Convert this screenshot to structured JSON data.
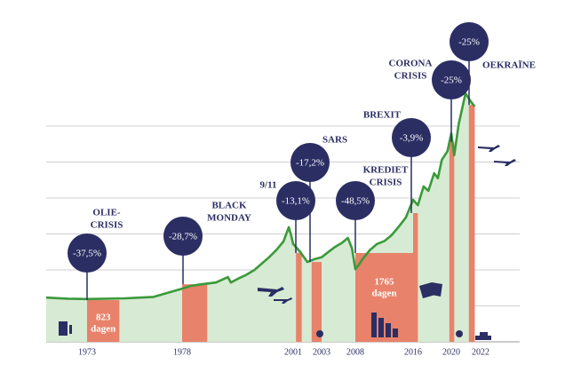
{
  "chart_data": {
    "type": "line",
    "x": [
      1970.85,
      1972,
      1973,
      1974,
      1975,
      1976.5,
      1978,
      1979,
      1980,
      1982,
      1985,
      1987.5,
      1988.1,
      1989.5,
      1991.1,
      1993,
      1996,
      1997.5,
      1999,
      2000.1,
      2000.6,
      2001,
      2001.5,
      2002,
      2002.5,
      2003,
      2004,
      2005,
      2006,
      2006.9,
      2007.5,
      2008,
      2008.5,
      2009,
      2010,
      2011,
      2012,
      2013,
      2014,
      2015,
      2016,
      2016.5,
      2017.1,
      2017.6,
      2018.2,
      2018.6,
      2019,
      2019.6,
      2020,
      2020.2,
      2020.5,
      2020.97,
      2021.3,
      2021.6
    ],
    "values": [
      1.23,
      1.2,
      1.19,
      1.2,
      1.21,
      1.25,
      1.48,
      1.52,
      1.56,
      1.6,
      1.65,
      1.8,
      1.65,
      1.75,
      1.85,
      2.0,
      2.35,
      2.55,
      2.79,
      3.19,
      2.95,
      2.72,
      2.5,
      2.22,
      2.3,
      2.35,
      2.5,
      2.64,
      2.75,
      2.89,
      2.6,
      2.02,
      2.15,
      2.3,
      2.55,
      2.72,
      2.8,
      2.96,
      3.2,
      3.46,
      3.95,
      3.8,
      4.32,
      4.2,
      4.69,
      4.55,
      5.06,
      5.3,
      5.8,
      5.19,
      6.05,
      6.91,
      6.7,
      6.54
    ],
    "color": "#3a9a3a",
    "area_color": "#d7ead3",
    "xticks": [
      1973,
      1978,
      2001,
      2003,
      2008,
      2016,
      2020,
      2022
    ],
    "ylim": [
      0,
      7
    ],
    "yticks": [
      0,
      1,
      2,
      3,
      4,
      5,
      6
    ],
    "grid": true,
    "bar_color": "#e8826a",
    "events": [
      {
        "name": [
          "OLIE-",
          "CRISIS"
        ],
        "change": -37.5,
        "change_label": "-37,5%",
        "start": 1973,
        "end": 1974.7,
        "level": 1.16,
        "duration_label": [
          "823",
          "dagen"
        ]
      },
      {
        "name": [
          "BLACK",
          "MONDAY"
        ],
        "change": -28.7,
        "change_label": "-28,7%",
        "start": 1978,
        "end": 1983.2,
        "level": 1.6
      },
      {
        "name": [
          "9/11"
        ],
        "change": -13.1,
        "change_label": "-13,1%",
        "start": 2001.2,
        "end": 2001.6,
        "level": 2.47
      },
      {
        "name": [
          "SARS"
        ],
        "change": -17.2,
        "change_label": "-17,2%",
        "start": 2002.3,
        "end": 2003,
        "level": 2.22
      },
      {
        "name": [
          "KREDIET",
          "CRISIS"
        ],
        "change": -48.5,
        "change_label": "-48,5%",
        "start": 2008,
        "end": 2016,
        "level": 2.47,
        "duration_label": [
          "1765",
          "dagen"
        ]
      },
      {
        "name": [
          "BREXIT"
        ],
        "change": -3.9,
        "change_label": "-3,9%",
        "start": 2016,
        "end": 2016.5,
        "level": 3.58
      },
      {
        "name": [
          "CORONA",
          "CRISIS"
        ],
        "change": -25,
        "change_label": "-25%",
        "start": 2019.8,
        "end": 2020.2,
        "level": 5.56
      },
      {
        "name": [
          "OEKRAÏNE"
        ],
        "change": -25,
        "change_label": "-25%",
        "start": 2021.2,
        "end": 2021.6,
        "level": 6.59
      }
    ]
  }
}
